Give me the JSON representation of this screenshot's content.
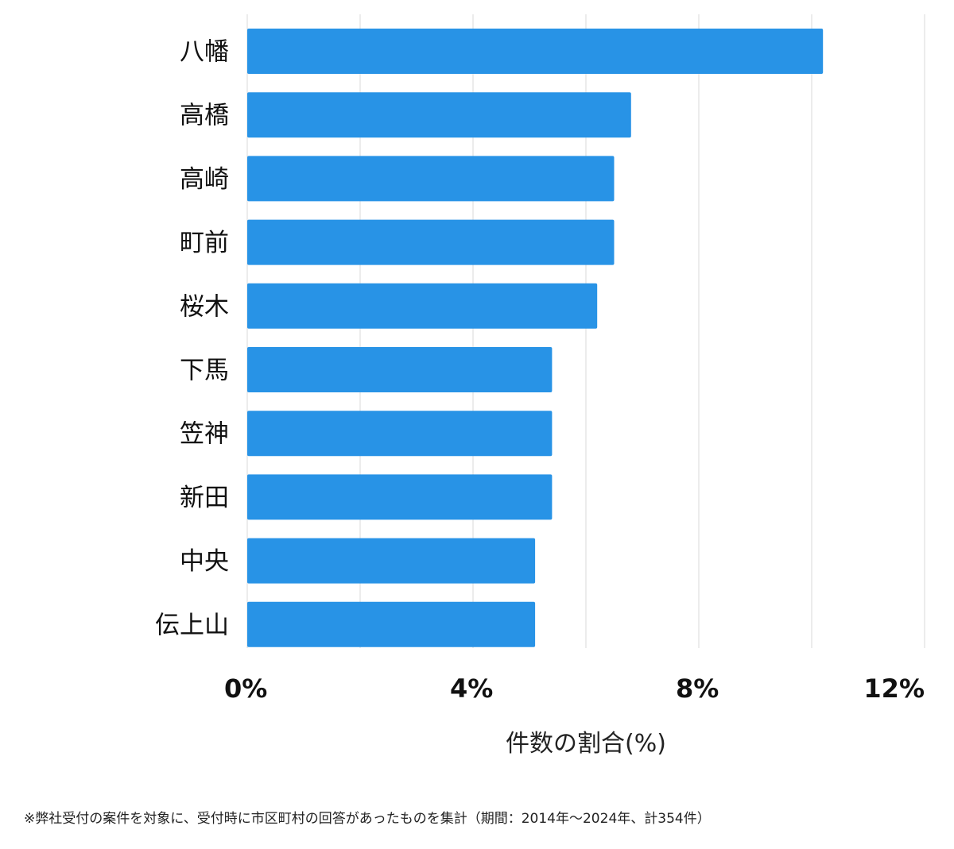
{
  "chart_data": {
    "type": "bar",
    "orientation": "horizontal",
    "categories": [
      "八幡",
      "高橋",
      "高崎",
      "町前",
      "桜木",
      "下馬",
      "笠神",
      "新田",
      "中央",
      "伝上山"
    ],
    "values": [
      10.2,
      6.8,
      6.5,
      6.5,
      6.2,
      5.4,
      5.4,
      5.4,
      5.1,
      5.1
    ],
    "xlabel": "件数の割合(%)",
    "ylabel": "",
    "xlim": [
      0,
      12
    ],
    "xticks": [
      0,
      4,
      8,
      12
    ],
    "xtick_labels": [
      "0%",
      "4%",
      "8%",
      "12%"
    ],
    "grid": true,
    "bar_color": "#2893e6"
  },
  "footnote": "※弊社受付の案件を対象に、受付時に市区町村の回答があったものを集計（期間：2014年～2024年、計354件）"
}
